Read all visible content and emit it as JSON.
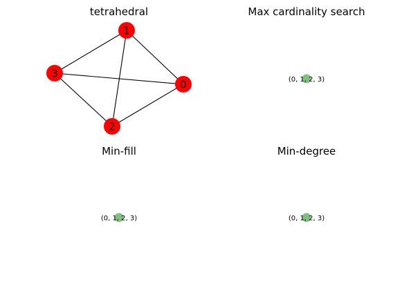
{
  "panels": [
    {
      "title": "tetrahedral",
      "graph": {
        "nodes": [
          "1",
          "3",
          "0",
          "2"
        ],
        "edges": [
          [
            "0",
            "1"
          ],
          [
            "0",
            "2"
          ],
          [
            "0",
            "3"
          ],
          [
            "1",
            "2"
          ],
          [
            "1",
            "3"
          ],
          [
            "2",
            "3"
          ]
        ],
        "node_color": "#ff0000"
      }
    },
    {
      "title": "Max cardinality search",
      "tree_node": "(0, 1, 2, 3)",
      "node_color": "#7fbf7f"
    },
    {
      "title": "Min-fill",
      "tree_node": "(0, 1, 2, 3)",
      "node_color": "#7fbf7f"
    },
    {
      "title": "Min-degree",
      "tree_node": "(0, 1, 2, 3)",
      "node_color": "#7fbf7f"
    }
  ]
}
